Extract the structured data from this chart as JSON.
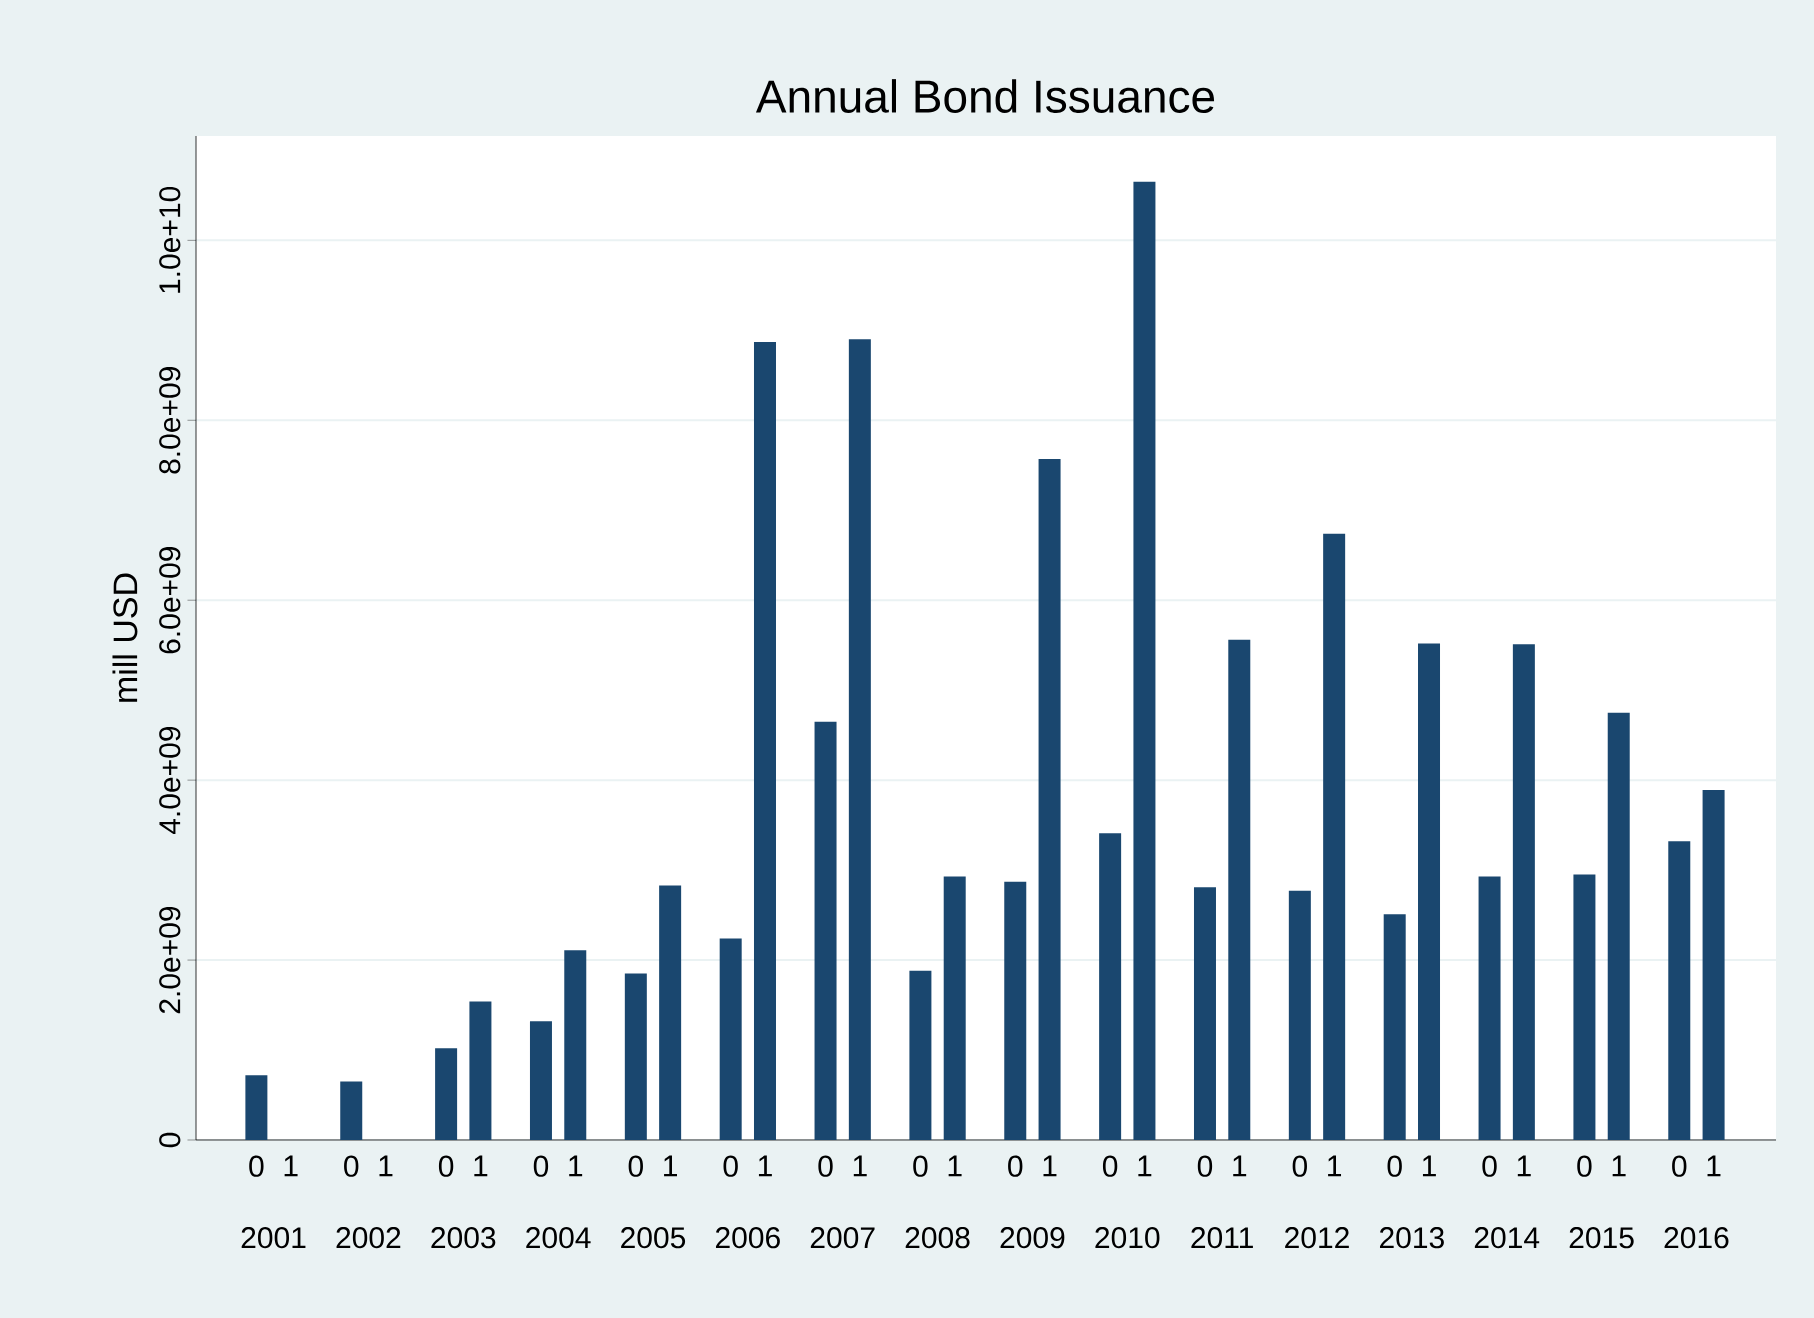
{
  "chart_data": {
    "type": "bar",
    "title": "Annual Bond Issuance",
    "ylabel": "mill USD",
    "categories": [
      "0",
      "1",
      "0",
      "1",
      "0",
      "1",
      "0",
      "1",
      "0",
      "1",
      "0",
      "1",
      "0",
      "1",
      "0",
      "1",
      "0",
      "1",
      "0",
      "1",
      "0",
      "1",
      "0",
      "1",
      "0",
      "1",
      "0",
      "1",
      "0",
      "1",
      "0",
      "1"
    ],
    "values": [
      720000000.0,
      null,
      650000000.0,
      null,
      1020000000.0,
      1540000000.0,
      1320000000.0,
      2110000000.0,
      1850000000.0,
      2830000000.0,
      2240000000.0,
      8870000000.0,
      4650000000.0,
      8900000000.0,
      1880000000.0,
      2930000000.0,
      2870000000.0,
      7570000000.0,
      3410000000.0,
      10650000000.0,
      2810000000.0,
      5560000000.0,
      2770000000.0,
      6740000000.0,
      2510000000.0,
      5520000000.0,
      2930000000.0,
      5510000000.0,
      2950000000.0,
      4750000000.0,
      3320000000.0,
      3890000000.0
    ],
    "color": "#1a476f",
    "ylim": [
      0,
      11160000000.0
    ],
    "yticks": [
      0,
      {
        "value": 2000000000.0,
        "label": "2.0e+09"
      },
      {
        "value": 4000000000.0,
        "label": "4.0e+09"
      },
      {
        "value": 6000000000.0,
        "label": "6.0e+09"
      },
      {
        "value": 8000000000.0,
        "label": "8.0e+09"
      },
      {
        "value": 10000000000.0,
        "label": "1.0e+10"
      }
    ],
    "grid": "y",
    "annotations": [
      "2001",
      "2002",
      "2003",
      "2004",
      "2005",
      "2006",
      "2007",
      "2008",
      "2009",
      "2010",
      "2011",
      "2012",
      "2013",
      "2014",
      "2015",
      "2016"
    ]
  }
}
